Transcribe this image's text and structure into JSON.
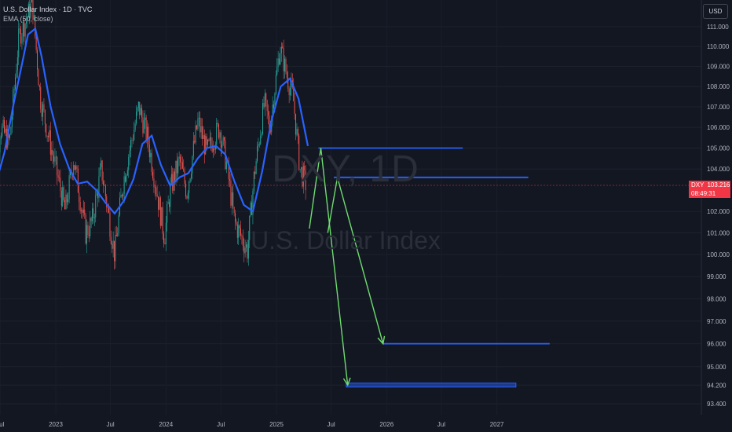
{
  "header": {
    "title": "U.S. Dollar Index · 1D · TVC",
    "indicator": "EMA (50, close)"
  },
  "currency_button": "USD",
  "watermark": {
    "symbol": "DXY, 1D",
    "name": "U.S. Dollar Index"
  },
  "price_tag": {
    "symbol": "DXY",
    "price": "103.216",
    "countdown": "08:49:31"
  },
  "colors": {
    "background": "#131722",
    "candle_up": "#26a69a",
    "candle_down": "#ef5350",
    "ema": "#2962ff",
    "level_lines": "#2962ff",
    "arrows": "#6fdc6f",
    "price_tag": "#f23645"
  },
  "chart_data": {
    "type": "candlestick",
    "title": "U.S. Dollar Index · 1D · TVC",
    "x_ticks": [
      "Jul",
      "2023",
      "Jul",
      "2024",
      "Jul",
      "2025",
      "Jul",
      "2026",
      "Jul",
      "2027"
    ],
    "y_ticks": [
      "111.000",
      "110.000",
      "109.000",
      "108.000",
      "107.000",
      "106.000",
      "105.000",
      "104.000",
      "102.000",
      "101.000",
      "100.000",
      "99.000",
      "98.000",
      "97.000",
      "96.000",
      "95.000",
      "94.200",
      "93.400"
    ],
    "y_scale": "log",
    "last_price": 103.216,
    "price_series": {
      "name": "DXY",
      "x": [
        "2022-06-01",
        "2022-07-01",
        "2022-08-01",
        "2022-09-01",
        "2022-09-27",
        "2022-10-15",
        "2022-11-10",
        "2022-12-01",
        "2023-01-05",
        "2023-02-01",
        "2023-03-01",
        "2023-04-10",
        "2023-05-01",
        "2023-06-01",
        "2023-07-15",
        "2023-08-10",
        "2023-09-01",
        "2023-10-03",
        "2023-11-01",
        "2023-12-27",
        "2024-01-15",
        "2024-02-15",
        "2024-03-10",
        "2024-04-16",
        "2024-05-15",
        "2024-06-26",
        "2024-07-20",
        "2024-08-15",
        "2024-09-27",
        "2024-10-20",
        "2024-11-22",
        "2024-12-10",
        "2025-01-13",
        "2025-02-05",
        "2025-02-25",
        "2025-03-20",
        "2025-04-10"
      ],
      "close": [
        101.5,
        106.0,
        105.3,
        110.5,
        111.4,
        112.3,
        107.5,
        106.0,
        103.8,
        102.0,
        104.5,
        101.0,
        101.5,
        104.0,
        100.0,
        103.2,
        104.8,
        107.0,
        105.5,
        100.8,
        103.0,
        104.4,
        102.9,
        106.3,
        104.8,
        106.0,
        104.2,
        101.5,
        100.2,
        103.8,
        107.2,
        106.0,
        110.0,
        108.5,
        107.5,
        104.0,
        103.2
      ]
    },
    "ema50": {
      "name": "EMA (50, close)",
      "x": [
        "2022-06-01",
        "2022-07-15",
        "2022-08-15",
        "2022-09-15",
        "2022-10-01",
        "2022-10-25",
        "2022-11-15",
        "2022-12-15",
        "2023-01-15",
        "2023-02-15",
        "2023-03-15",
        "2023-04-15",
        "2023-05-15",
        "2023-06-15",
        "2023-07-15",
        "2023-08-15",
        "2023-09-15",
        "2023-10-15",
        "2023-11-15",
        "2023-12-15",
        "2024-01-15",
        "2024-02-15",
        "2024-03-15",
        "2024-04-15",
        "2024-05-15",
        "2024-06-15",
        "2024-07-15",
        "2024-08-15",
        "2024-09-15",
        "2024-10-15",
        "2024-11-15",
        "2024-12-15",
        "2025-01-15",
        "2025-02-15",
        "2025-03-15",
        "2025-04-15"
      ],
      "values": [
        102.5,
        104.8,
        107.2,
        109.4,
        110.6,
        110.9,
        109.5,
        107.0,
        105.2,
        104.0,
        103.3,
        103.4,
        103.0,
        102.4,
        101.9,
        102.5,
        103.5,
        105.2,
        105.6,
        104.2,
        103.2,
        103.6,
        103.8,
        104.5,
        105.0,
        105.1,
        104.7,
        103.4,
        102.3,
        102.0,
        103.9,
        106.3,
        108.0,
        108.4,
        107.4,
        105.1
      ]
    },
    "levels": [
      {
        "from": "2025-05-20",
        "to": "2026-09-10",
        "value": 105.0
      },
      {
        "from": "2025-07-10",
        "to": "2027-04-15",
        "value": 103.6
      },
      {
        "from": "2025-12-20",
        "to": "2027-06-25",
        "value": 96.0
      },
      {
        "from": "2025-08-20",
        "to": "2027-03-05",
        "value": 94.2
      }
    ],
    "projection_paths": [
      {
        "x": [
          "2025-04-20",
          "2025-05-28",
          "2025-08-25"
        ],
        "y": [
          101.2,
          105.0,
          94.2
        ]
      },
      {
        "x": [
          "2025-06-20",
          "2025-07-22",
          "2025-12-20"
        ],
        "y": [
          101.0,
          103.6,
          96.0
        ]
      }
    ]
  }
}
